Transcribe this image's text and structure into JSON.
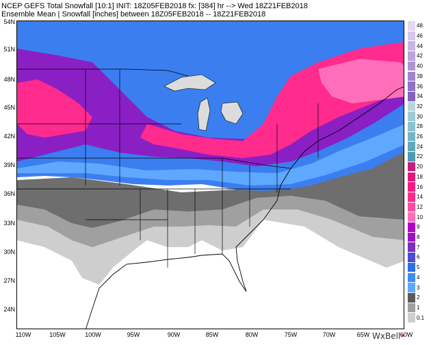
{
  "title": {
    "line1": "NCEP GEFS Total Snowfall [10:1] INIT: 18Z05FEB2018 fx: [384] hr --> Wed 18Z21FEB2018",
    "line2": "Ensemble Mean | Snowfall [inches] between 18Z05FEB2018 -- 18Z21FEB2018"
  },
  "latitude_labels": [
    "54N",
    "51N",
    "48N",
    "45N",
    "42N",
    "39N",
    "36N",
    "33N",
    "30N",
    "27N",
    "24N"
  ],
  "longitude_labels": [
    "110W",
    "105W",
    "100W",
    "95W",
    "90W",
    "85W",
    "80W",
    "75W",
    "70W",
    "65W",
    "60W"
  ],
  "colorbar": {
    "units": "inches",
    "levels": [
      "48",
      "46",
      "44",
      "42",
      "40",
      "38",
      "36",
      "34",
      "32",
      "30",
      "28",
      "26",
      "24",
      "22",
      "20",
      "18",
      "16",
      "14",
      "12",
      "10",
      "9",
      "8",
      "7",
      "6",
      "5",
      "4",
      "3",
      "2",
      "1",
      "0.1"
    ],
    "colors": [
      "#e4d7f0",
      "#d7c6ea",
      "#c9b5e3",
      "#bca4dc",
      "#ae93d5",
      "#a083ce",
      "#9072c6",
      "#8263be",
      "#b6d6dc",
      "#9fcbd6",
      "#8ac1cf",
      "#74b6c6",
      "#5fa9bd",
      "#4b9bb1",
      "#c61d78",
      "#e0187c",
      "#f51a82",
      "#ff2b8d",
      "#ff4ba0",
      "#ff6fb9",
      "#b400cc",
      "#9b13c4",
      "#7c2dbf",
      "#4a4ad8",
      "#2a6ee8",
      "#3b8ef5",
      "#5ea8ff",
      "#5a5a5a",
      "#a0a0a0",
      "#cecece"
    ]
  },
  "logo": {
    "text": "WxBell"
  }
}
